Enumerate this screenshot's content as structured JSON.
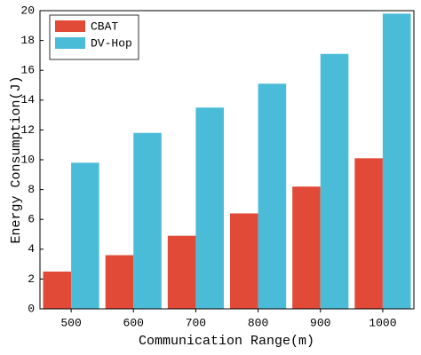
{
  "chart_data": {
    "type": "bar",
    "xlabel": "Communication Range(m)",
    "ylabel": "Energy Consumption(J)",
    "categories": [
      "500",
      "600",
      "700",
      "800",
      "900",
      "1000"
    ],
    "series": [
      {
        "name": "CBAT",
        "color": "#e04a36",
        "values": [
          2.5,
          3.6,
          4.9,
          6.4,
          8.2,
          10.1
        ]
      },
      {
        "name": "DV-Hop",
        "color": "#4bbcd8",
        "values": [
          9.8,
          11.8,
          13.5,
          15.1,
          17.1,
          19.8
        ]
      }
    ],
    "ylim": [
      0,
      20
    ],
    "yticks": [
      0,
      2,
      4,
      6,
      8,
      10,
      12,
      14,
      16,
      18,
      20
    ],
    "legend": "upper-left"
  }
}
